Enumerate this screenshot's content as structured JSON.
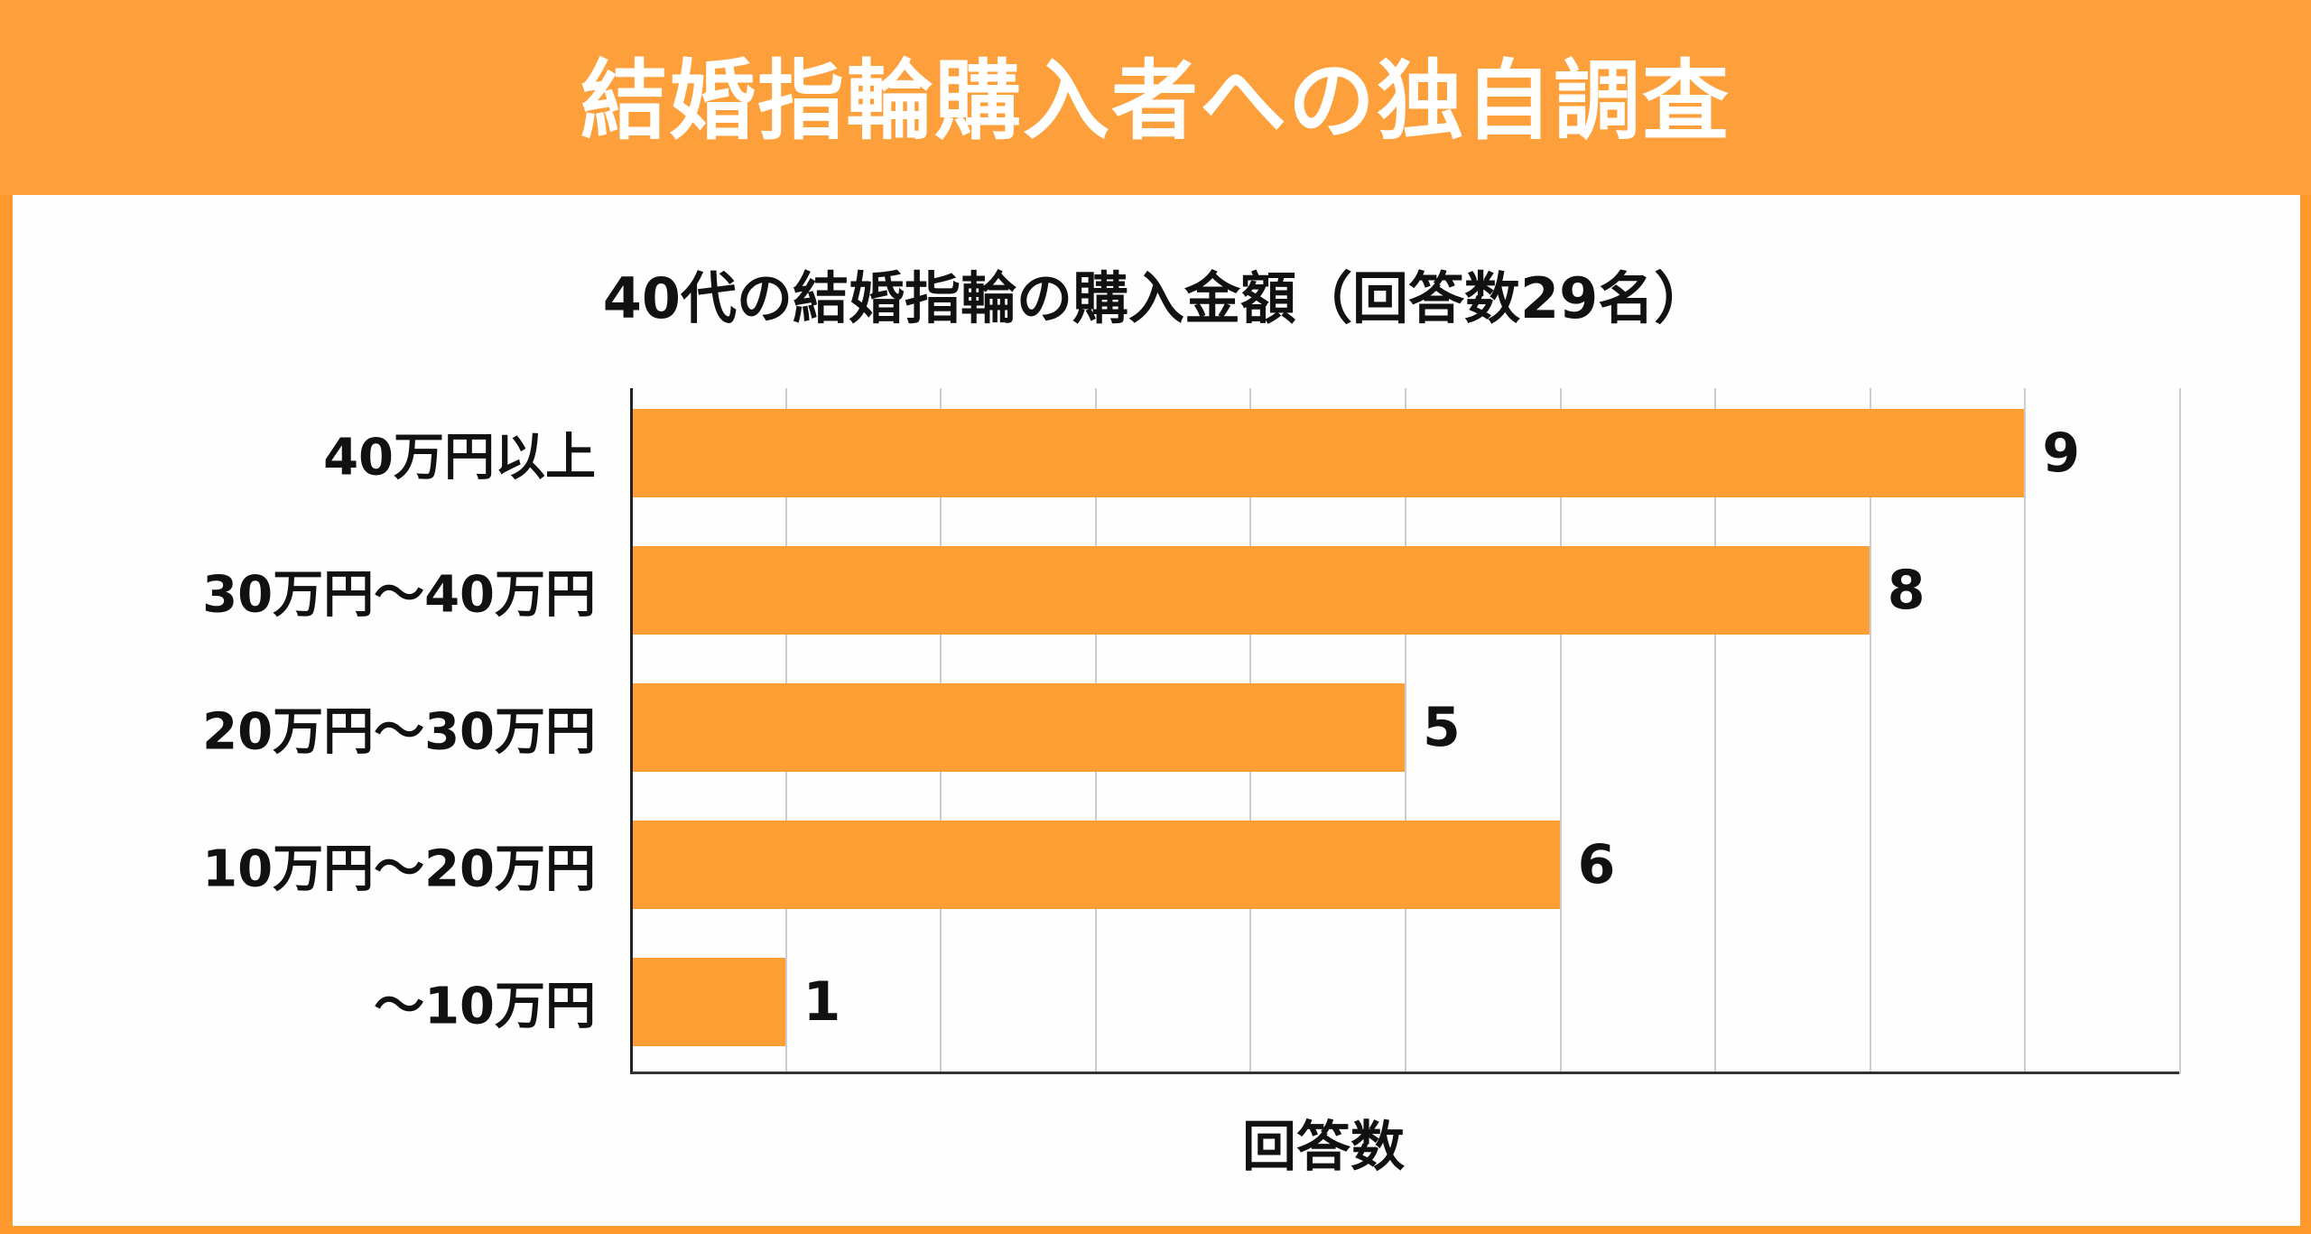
{
  "banner": {
    "title": "結婚指輪購入者への独自調査"
  },
  "colors": {
    "frame": "#fe9a2e",
    "banner": "#fd9f3a",
    "bar": "#fd9f35",
    "grid": "#cccccc",
    "text": "#111111"
  },
  "chart_data": {
    "type": "bar",
    "orientation": "horizontal",
    "title": "40代の結婚指輪の購入金額（回答数29名）",
    "xlabel": "回答数",
    "ylabel": "",
    "categories": [
      "40万円以上",
      "30万円〜40万円",
      "20万円〜30万円",
      "10万円〜20万円",
      "〜10万円"
    ],
    "values": [
      9,
      8,
      5,
      6,
      1
    ],
    "value_labels": [
      "9",
      "8",
      "5",
      "6",
      "1"
    ],
    "xlim": [
      0,
      10
    ],
    "grid": true,
    "gridline_step": 1,
    "tick_labels_visible": false,
    "legend": null
  }
}
